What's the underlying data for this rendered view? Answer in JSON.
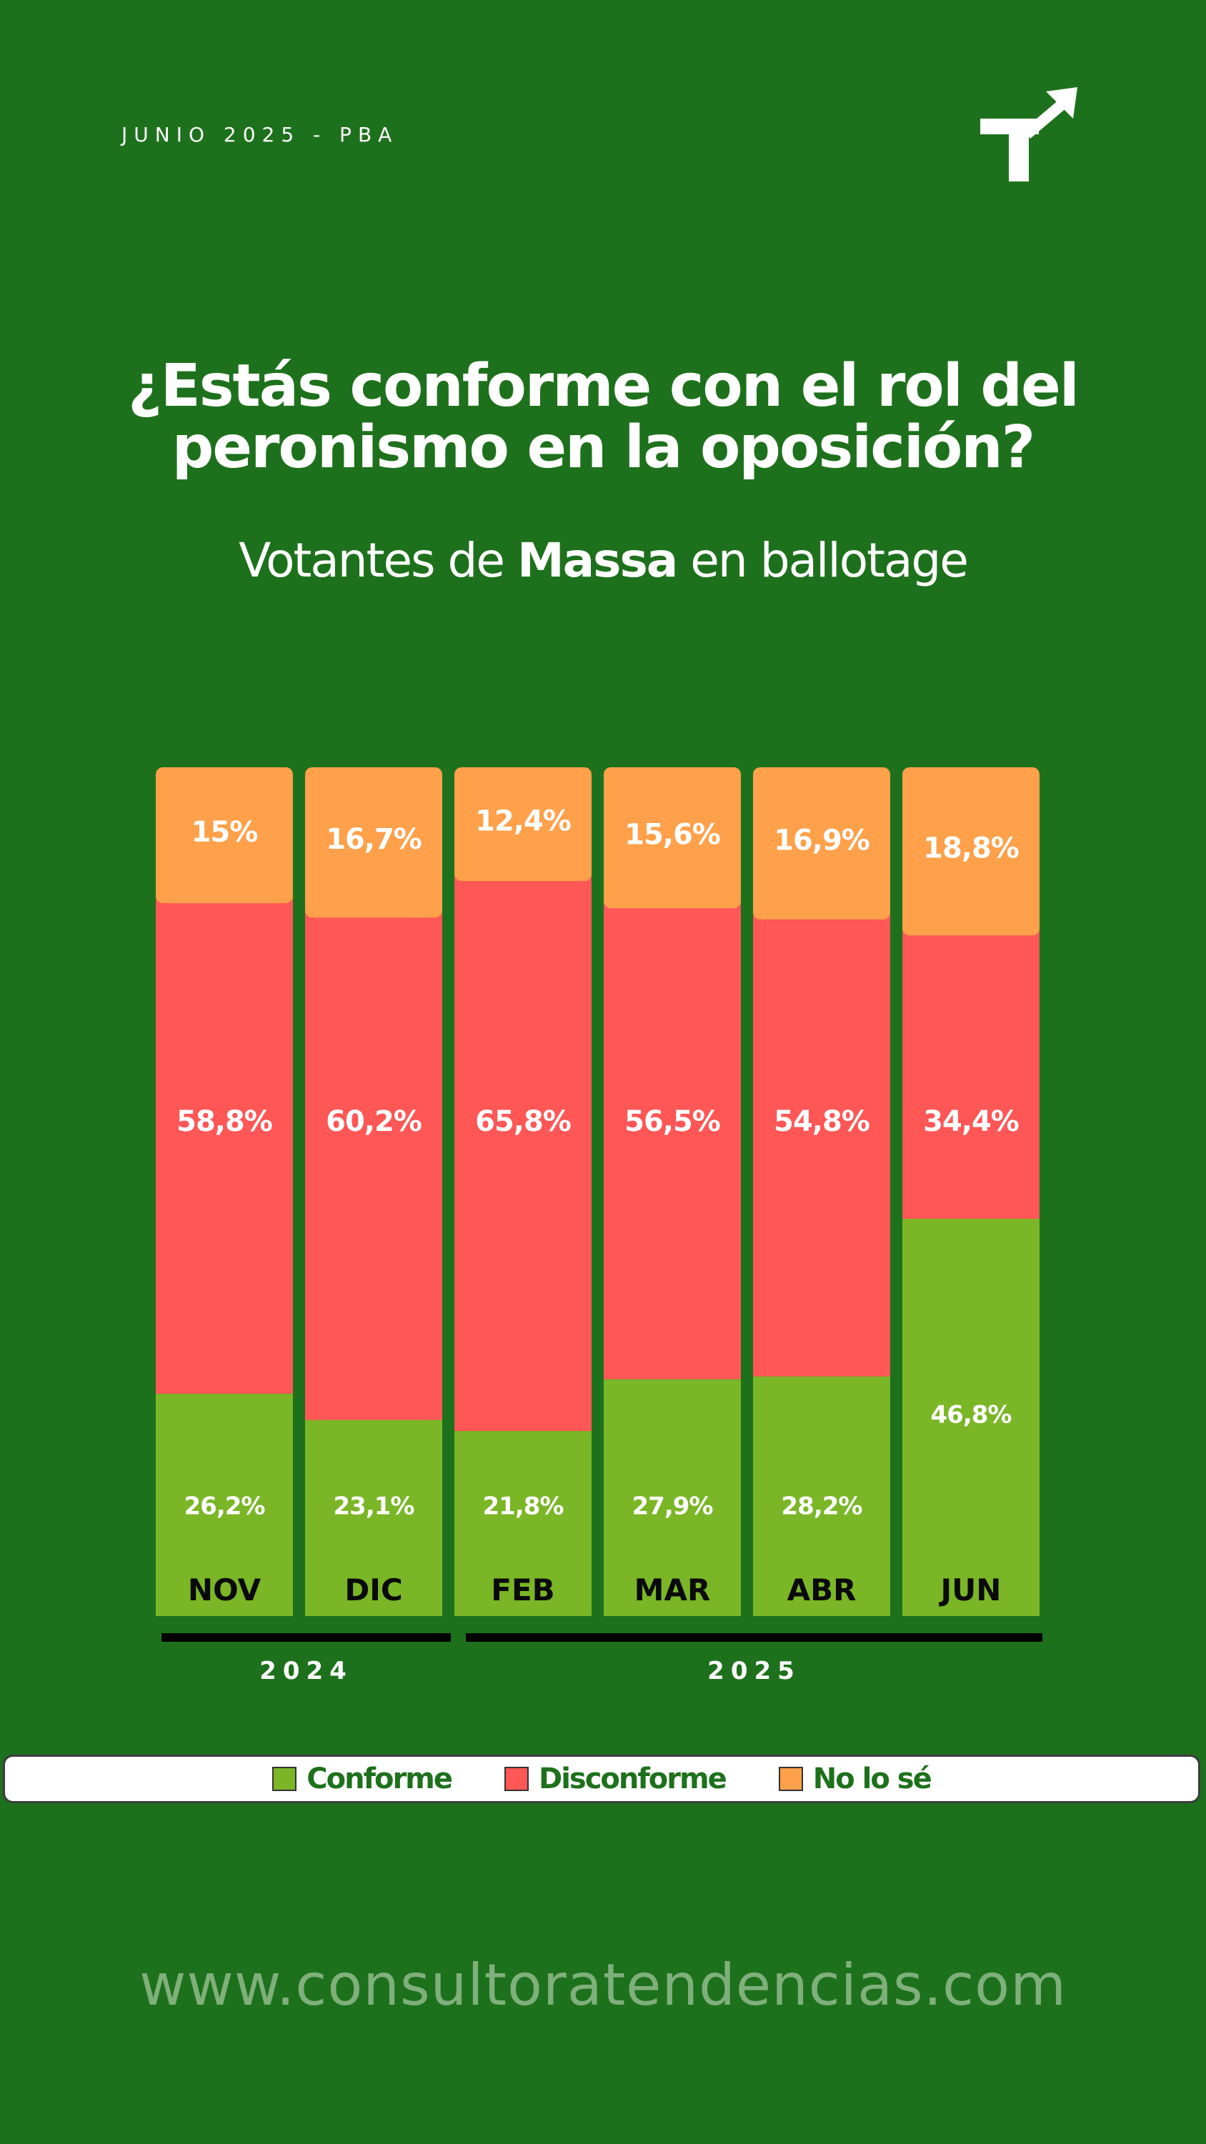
{
  "header": {
    "kicker": "JUNIO 2025 - PBA",
    "title_line1": "¿Estás conforme con el rol del",
    "title_line2": "peronismo en la oposición?",
    "subtitle_pre": "Votantes de ",
    "subtitle_bold": "Massa",
    "subtitle_post": " en ballotage"
  },
  "colors": {
    "background": "#1e711c",
    "conforme": "#7ab626",
    "disconforme": "#ff5656",
    "no_lo_se": "#ffa04a",
    "month_label": "#0a0a0a"
  },
  "chart_data": {
    "type": "bar",
    "stacked": true,
    "categories": [
      "NOV",
      "DIC",
      "FEB",
      "MAR",
      "ABR",
      "JUN"
    ],
    "groups": [
      {
        "label": "2024",
        "categories": [
          "NOV",
          "DIC"
        ]
      },
      {
        "label": "2025",
        "categories": [
          "FEB",
          "MAR",
          "ABR",
          "JUN"
        ]
      }
    ],
    "series": [
      {
        "name": "Conforme",
        "values": [
          26.2,
          23.1,
          21.8,
          27.9,
          28.2,
          46.8
        ],
        "labels": [
          "26,2%",
          "23,1%",
          "21,8%",
          "27,9%",
          "28,2%",
          "46,8%"
        ]
      },
      {
        "name": "Disconforme",
        "values": [
          58.8,
          60.2,
          65.8,
          56.5,
          54.8,
          34.4
        ],
        "labels": [
          "58,8%",
          "60,2%",
          "65,8%",
          "56,5%",
          "54,8%",
          "34,4%"
        ]
      },
      {
        "name": "No lo sé",
        "values": [
          15.0,
          16.7,
          12.4,
          15.6,
          16.9,
          18.8
        ],
        "labels": [
          "15%",
          "16,7%",
          "12,4%",
          "15,6%",
          "16,9%",
          "18,8%"
        ]
      }
    ],
    "ylim": [
      0,
      100
    ],
    "legend_position": "bottom",
    "grid": false
  },
  "legend": {
    "items": [
      {
        "label": "Conforme",
        "color": "#7ab626"
      },
      {
        "label": "Disconforme",
        "color": "#ff5656"
      },
      {
        "label": "No lo sé",
        "color": "#ffa04a"
      }
    ]
  },
  "footer": {
    "website": "www.consultoratendencias.com"
  }
}
